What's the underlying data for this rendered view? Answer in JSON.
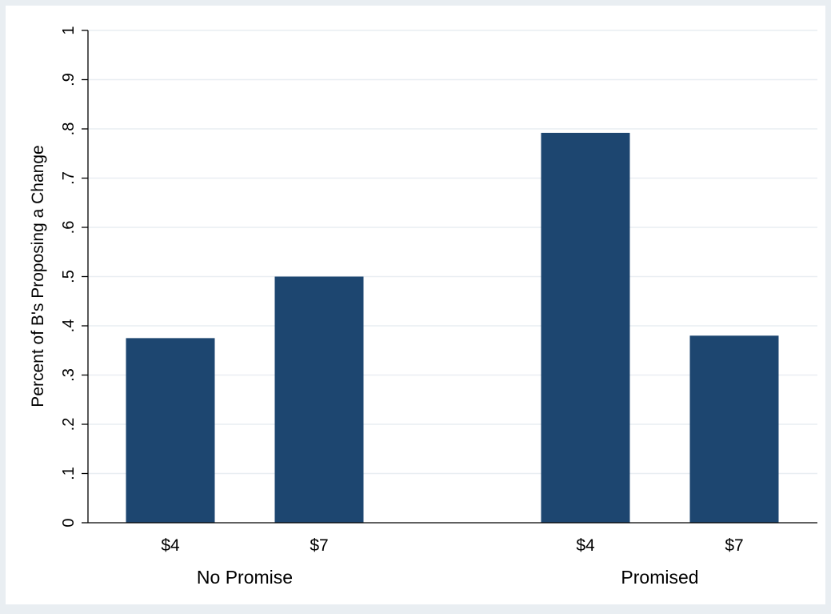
{
  "chart_data": {
    "type": "bar",
    "title": "",
    "xlabel": "",
    "ylabel": "Percent of B's Proposing a Change",
    "ylim": [
      0,
      1
    ],
    "yticks": [
      0,
      0.1,
      0.2,
      0.3,
      0.4,
      0.5,
      0.6,
      0.7,
      0.8,
      0.9,
      1
    ],
    "ytick_labels": [
      "0",
      ".1",
      ".2",
      ".3",
      ".4",
      ".5",
      ".6",
      ".7",
      ".8",
      ".9",
      "1"
    ],
    "grid": true,
    "groups": [
      {
        "label": "No Promise",
        "categories": [
          "$4",
          "$7"
        ],
        "values": [
          0.375,
          0.5
        ]
      },
      {
        "label": "Promised",
        "categories": [
          "$4",
          "$7"
        ],
        "values": [
          0.792,
          0.38
        ]
      }
    ],
    "colors": {
      "bar": "#1d4670",
      "background": "#e9eef2",
      "plot_background": "#ffffff",
      "grid": "#e9eef2",
      "axis": "#000000"
    }
  }
}
